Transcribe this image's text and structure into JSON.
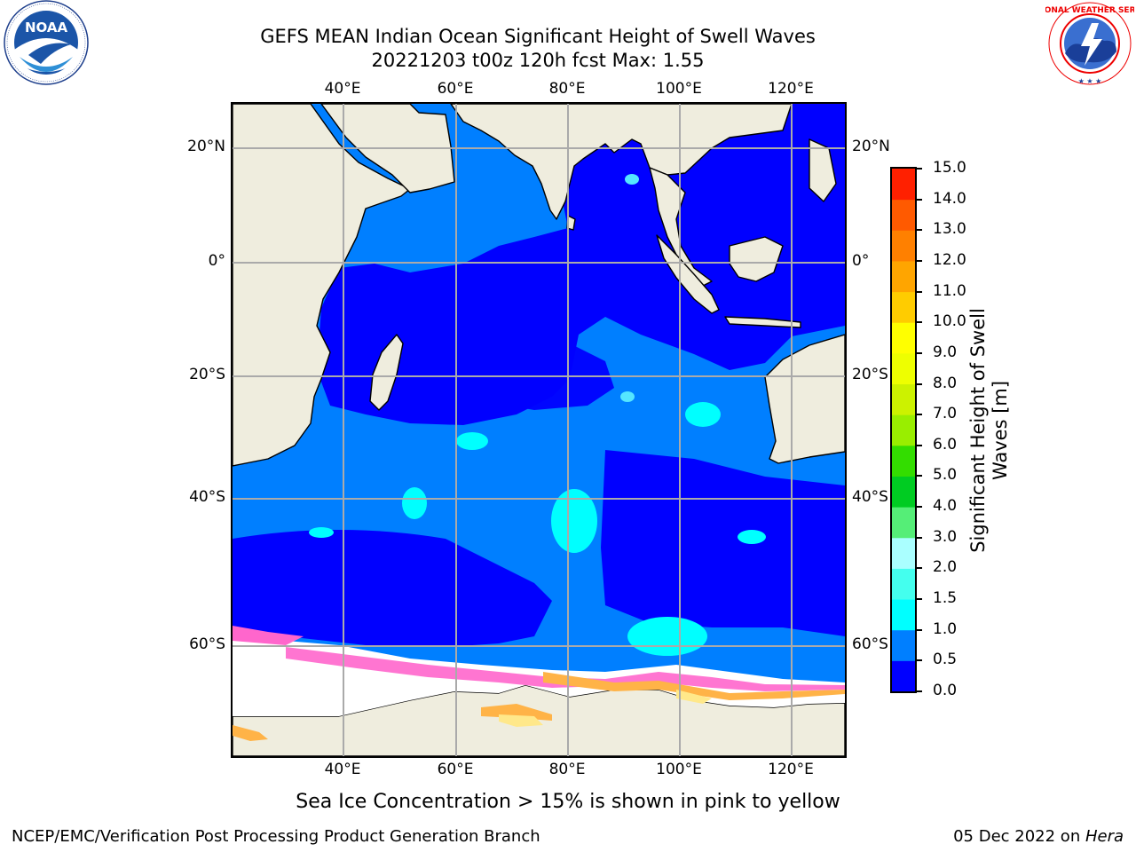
{
  "header": {
    "title_line1": "GEFS MEAN Indian Ocean Significant Height of Swell Waves",
    "title_line2": "20221203 t00z 120h fcst   Max: 1.55"
  },
  "logos": {
    "left": "NOAA",
    "right": "NATIONAL WEATHER SERVICE"
  },
  "map": {
    "lon_ticks": [
      "40°E",
      "60°E",
      "80°E",
      "100°E",
      "120°E"
    ],
    "lat_ticks": [
      "20°N",
      "0°",
      "20°S",
      "40°S",
      "60°S"
    ],
    "colors": {
      "land": "#efedde",
      "ice_white": "#ffffff",
      "ice_pink": "#ff66cc",
      "ice_orange": "#ffb347",
      "ice_yellow": "#ffe88a"
    }
  },
  "colorbar": {
    "label_line1": "Significant Height of Swell",
    "label_line2": "Waves [m]",
    "ticks": [
      "15.0",
      "14.0",
      "13.0",
      "12.0",
      "11.0",
      "10.0",
      "9.0",
      "8.0",
      "7.0",
      "6.0",
      "5.0",
      "4.0",
      "3.0",
      "2.0",
      "1.5",
      "1.0",
      "0.5",
      "0.0"
    ],
    "bins": [
      {
        "from": "0.0",
        "to": "0.5",
        "color": "#0000ff"
      },
      {
        "from": "0.5",
        "to": "1.0",
        "color": "#007fff"
      },
      {
        "from": "1.0",
        "to": "1.5",
        "color": "#00ffff"
      },
      {
        "from": "1.5",
        "to": "2.0",
        "color": "#44ffee"
      },
      {
        "from": "2.0",
        "to": "3.0",
        "color": "#aaffff"
      },
      {
        "from": "3.0",
        "to": "4.0",
        "color": "#55ee77"
      },
      {
        "from": "4.0",
        "to": "5.0",
        "color": "#00cc22"
      },
      {
        "from": "5.0",
        "to": "6.0",
        "color": "#33dd00"
      },
      {
        "from": "6.0",
        "to": "7.0",
        "color": "#99ee00"
      },
      {
        "from": "7.0",
        "to": "8.0",
        "color": "#ccf200"
      },
      {
        "from": "8.0",
        "to": "9.0",
        "color": "#eeff00"
      },
      {
        "from": "9.0",
        "to": "10.0",
        "color": "#ffff00"
      },
      {
        "from": "10.0",
        "to": "11.0",
        "color": "#ffcc00"
      },
      {
        "from": "11.0",
        "to": "12.0",
        "color": "#ffa500"
      },
      {
        "from": "12.0",
        "to": "13.0",
        "color": "#ff8000"
      },
      {
        "from": "13.0",
        "to": "14.0",
        "color": "#ff5a00"
      },
      {
        "from": "14.0",
        "to": "15.0",
        "color": "#ff2000"
      }
    ]
  },
  "caption": "Sea Ice Concentration > 15% is shown in pink to yellow",
  "footer": {
    "left": "NCEP/EMC/Verification Post Processing Product Generation Branch",
    "right_date": "05 Dec 2022 on ",
    "right_host": "Hera"
  }
}
